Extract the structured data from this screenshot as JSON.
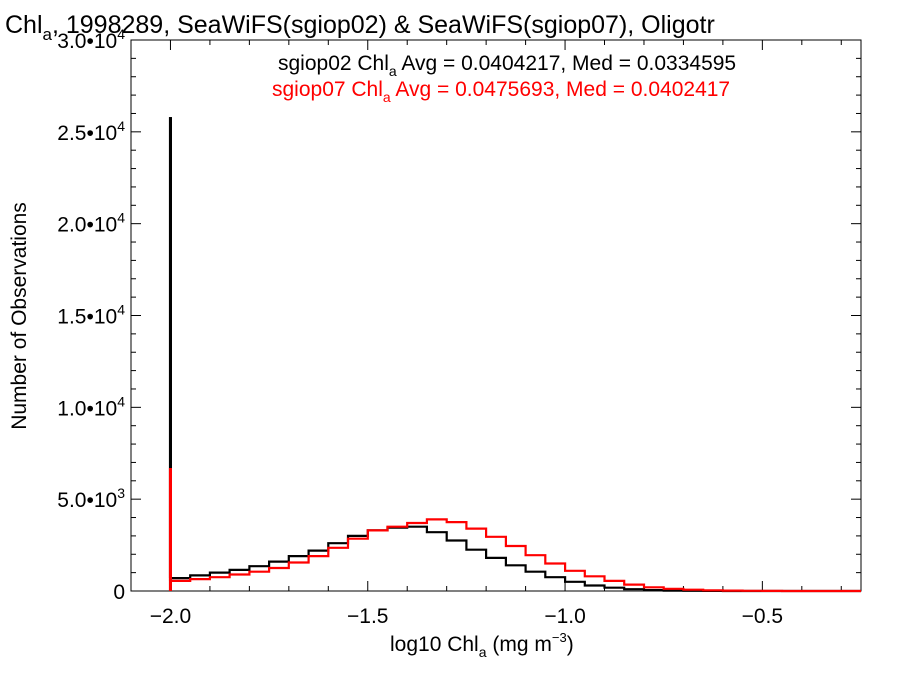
{
  "chart_data": {
    "type": "line",
    "title": {
      "pre": "Chl",
      "sub": "a",
      "post": ", 1998289, SeaWiFS(sgiop02) & SeaWiFS(sgiop07), Oligotr"
    },
    "xlabel": {
      "pre": "log10 Chl",
      "sub": "a",
      "mid": " (mg m",
      "sup": "−3",
      "post": ")"
    },
    "ylabel": "Number of Observations",
    "xlim": [
      -2.1,
      -0.25
    ],
    "ylim": [
      0,
      30000
    ],
    "xticks": [
      {
        "value": -2.0,
        "label": "−2.0"
      },
      {
        "value": -1.5,
        "label": "−1.5"
      },
      {
        "value": -1.0,
        "label": "−1.0"
      },
      {
        "value": -0.5,
        "label": "−0.5"
      }
    ],
    "yticks": [
      {
        "value": 0,
        "mant": "0",
        "exp": ""
      },
      {
        "value": 5000,
        "mant": "5.0•10",
        "exp": "3"
      },
      {
        "value": 10000,
        "mant": "1.0•10",
        "exp": "4"
      },
      {
        "value": 15000,
        "mant": "1.5•10",
        "exp": "4"
      },
      {
        "value": 20000,
        "mant": "2.0•10",
        "exp": "4"
      },
      {
        "value": 25000,
        "mant": "2.5•10",
        "exp": "4"
      },
      {
        "value": 30000,
        "mant": "3.0•10",
        "exp": "4"
      }
    ],
    "step": "histogram",
    "series": [
      {
        "name": "sgiop02",
        "color": "#000000",
        "legend": {
          "pre": "sgiop02 Chl",
          "sub": "a",
          "post": " Avg = 0.0404217, Med = 0.0334595"
        },
        "spike": {
          "x": -2.0,
          "y": 25800
        },
        "x": [
          -2.0,
          -1.95,
          -1.9,
          -1.85,
          -1.8,
          -1.75,
          -1.7,
          -1.65,
          -1.6,
          -1.55,
          -1.5,
          -1.45,
          -1.4,
          -1.35,
          -1.3,
          -1.25,
          -1.2,
          -1.15,
          -1.1,
          -1.05,
          -1.0,
          -0.95,
          -0.9,
          -0.85,
          -0.8,
          -0.75,
          -0.7,
          -0.65,
          -0.6,
          -0.55,
          -0.5,
          -0.45,
          -0.4,
          -0.35,
          -0.3,
          -0.25
        ],
        "y": [
          700,
          850,
          1000,
          1150,
          1350,
          1600,
          1900,
          2200,
          2600,
          3000,
          3300,
          3450,
          3500,
          3200,
          2750,
          2250,
          1800,
          1400,
          1050,
          750,
          500,
          300,
          180,
          100,
          50,
          20,
          10,
          5,
          0,
          0,
          0,
          0,
          0,
          0,
          0,
          0
        ]
      },
      {
        "name": "sgiop07",
        "color": "#ff0000",
        "legend": {
          "pre": "sgiop07 Chl",
          "sub": "a",
          "post": " Avg = 0.0475693, Med = 0.0402417"
        },
        "spike": {
          "x": -2.0,
          "y": 6700
        },
        "x": [
          -2.0,
          -1.95,
          -1.9,
          -1.85,
          -1.8,
          -1.75,
          -1.7,
          -1.65,
          -1.6,
          -1.55,
          -1.5,
          -1.45,
          -1.4,
          -1.35,
          -1.3,
          -1.25,
          -1.2,
          -1.15,
          -1.1,
          -1.05,
          -1.0,
          -0.95,
          -0.9,
          -0.85,
          -0.8,
          -0.75,
          -0.7,
          -0.65,
          -0.6,
          -0.55,
          -0.5,
          -0.45,
          -0.4,
          -0.35,
          -0.3,
          -0.25
        ],
        "y": [
          550,
          650,
          750,
          900,
          1050,
          1250,
          1550,
          1900,
          2350,
          2850,
          3300,
          3500,
          3700,
          3900,
          3750,
          3400,
          2950,
          2450,
          1950,
          1500,
          1100,
          800,
          550,
          350,
          200,
          120,
          70,
          40,
          20,
          10,
          5,
          0,
          0,
          0,
          0,
          0
        ]
      }
    ]
  }
}
